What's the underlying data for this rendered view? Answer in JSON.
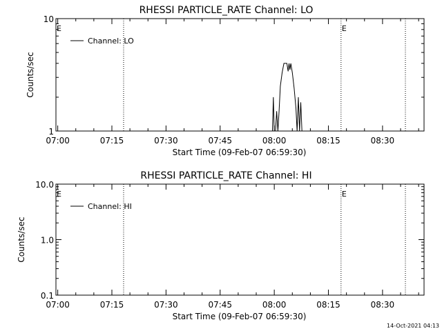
{
  "chart_data": [
    {
      "type": "line",
      "title": "RHESSI PARTICLE_RATE Channel: LO",
      "xlabel": "Start Time (09-Feb-07 06:59:30)",
      "ylabel": "Counts/sec",
      "yscale": "log",
      "ylim": [
        1,
        10
      ],
      "y_tick_labels": [
        "1",
        "10"
      ],
      "y_tick_values": [
        1,
        10
      ],
      "x_tick_labels": [
        "07:00",
        "07:15",
        "07:30",
        "07:45",
        "08:00",
        "08:15",
        "08:30"
      ],
      "x_tick_values": [
        "07:00",
        "07:15",
        "07:30",
        "07:45",
        "08:00",
        "08:15",
        "08:30"
      ],
      "xlim": [
        "06:59:30",
        "08:41:30"
      ],
      "legend": {
        "entries": [
          "Channel: LO"
        ],
        "position": "top-left"
      },
      "markers": [
        {
          "label": "E",
          "time": "06:59:30"
        },
        {
          "label": "",
          "time": "07:18:15"
        },
        {
          "label": "E",
          "time": "08:18:30"
        },
        {
          "label": "",
          "time": "08:36:20"
        }
      ],
      "series": [
        {
          "name": "Channel: LO",
          "points": [
            [
              "07:59:30",
              1
            ],
            [
              "07:59:45",
              2
            ],
            [
              "08:00:00",
              1
            ],
            [
              "08:00:20",
              1
            ],
            [
              "08:00:40",
              1.5
            ],
            [
              "08:01:00",
              1
            ],
            [
              "08:01:20",
              1.5
            ],
            [
              "08:01:40",
              2.5
            ],
            [
              "08:02:10",
              3.3
            ],
            [
              "08:02:40",
              4
            ],
            [
              "08:03:30",
              4
            ],
            [
              "08:03:50",
              3.4
            ],
            [
              "08:04:05",
              4
            ],
            [
              "08:04:20",
              3.5
            ],
            [
              "08:04:35",
              4
            ],
            [
              "08:05:00",
              3.3
            ],
            [
              "08:05:30",
              2.4
            ],
            [
              "08:06:00",
              1.6
            ],
            [
              "08:06:20",
              1
            ],
            [
              "08:06:40",
              2
            ],
            [
              "08:07:00",
              1
            ],
            [
              "08:07:20",
              1.8
            ],
            [
              "08:07:40",
              1
            ]
          ]
        }
      ]
    },
    {
      "type": "line",
      "title": "RHESSI PARTICLE_RATE Channel: HI",
      "xlabel": "Start Time (09-Feb-07 06:59:30)",
      "ylabel": "Counts/sec",
      "yscale": "log",
      "ylim": [
        0.1,
        10
      ],
      "y_tick_labels": [
        "0.1",
        "1.0",
        "10.0"
      ],
      "y_tick_values": [
        0.1,
        1,
        10
      ],
      "x_tick_labels": [
        "07:00",
        "07:15",
        "07:30",
        "07:45",
        "08:00",
        "08:15",
        "08:30"
      ],
      "x_tick_values": [
        "07:00",
        "07:15",
        "07:30",
        "07:45",
        "08:00",
        "08:15",
        "08:30"
      ],
      "xlim": [
        "06:59:30",
        "08:41:30"
      ],
      "legend": {
        "entries": [
          "Channel: HI"
        ],
        "position": "top-left"
      },
      "markers": [
        {
          "label": "E",
          "time": "06:59:30"
        },
        {
          "label": "",
          "time": "07:18:15"
        },
        {
          "label": "E",
          "time": "08:18:30"
        },
        {
          "label": "",
          "time": "08:36:20"
        }
      ],
      "series": [
        {
          "name": "Channel: HI",
          "points": []
        }
      ]
    }
  ],
  "timestamp": "14-Oct-2021 04:13"
}
